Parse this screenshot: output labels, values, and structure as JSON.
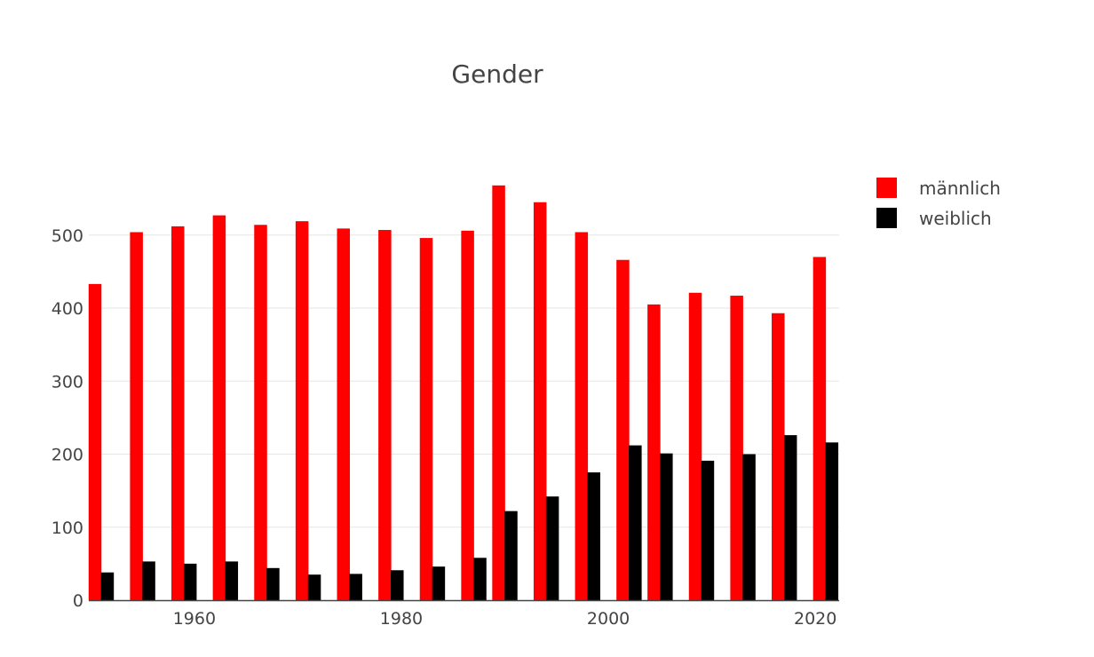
{
  "chart_data": {
    "type": "bar",
    "title": "Gender",
    "xlabel": "",
    "ylabel": "",
    "x": [
      1951,
      1955,
      1959,
      1963,
      1967,
      1971,
      1975,
      1979,
      1983,
      1987,
      1990,
      1994,
      1998,
      2002,
      2005,
      2009,
      2013,
      2017,
      2021
    ],
    "series": [
      {
        "name": "männlich",
        "color": "#ff0000",
        "values": [
          433,
          504,
          512,
          527,
          514,
          519,
          509,
          507,
          496,
          506,
          568,
          545,
          504,
          466,
          405,
          421,
          417,
          393,
          470
        ]
      },
      {
        "name": "weiblich",
        "color": "#000000",
        "values": [
          38,
          53,
          50,
          53,
          44,
          35,
          36,
          41,
          46,
          58,
          122,
          142,
          175,
          212,
          201,
          191,
          200,
          226,
          216
        ]
      }
    ],
    "xlim": [
      1949.8,
      2022.3
    ],
    "ylim": [
      0,
      597
    ],
    "xticks": [
      "1960",
      "1980",
      "2000",
      "2020"
    ],
    "yticks": [
      "0",
      "100",
      "200",
      "300",
      "400",
      "500"
    ],
    "grid": true,
    "legend_position": "top-right"
  }
}
